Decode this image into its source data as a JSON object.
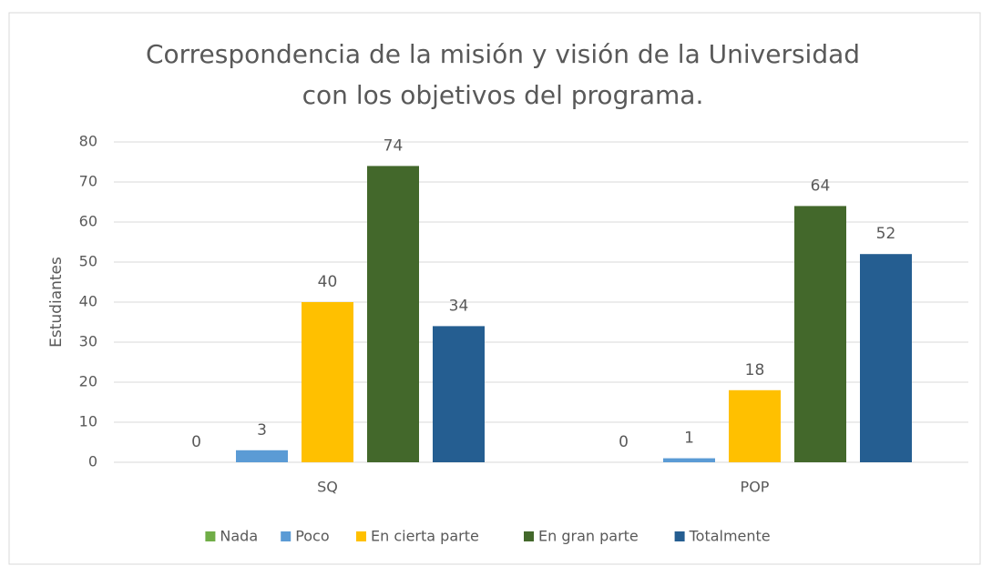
{
  "chart_data": {
    "type": "bar",
    "title_lines": [
      "Correspondencia  de la misión y visión de la Universidad",
      "con los objetivos del programa."
    ],
    "y_label": "Estudiantes",
    "categories": [
      "SQ",
      "POP"
    ],
    "series": [
      {
        "name": "Nada",
        "color": "#70ad47",
        "values": [
          0,
          0
        ]
      },
      {
        "name": "Poco",
        "color": "#5b9bd5",
        "values": [
          3,
          1
        ]
      },
      {
        "name": "En cierta parte",
        "color": "#ffc000",
        "values": [
          40,
          18
        ]
      },
      {
        "name": "En gran parte",
        "color": "#43682b",
        "values": [
          74,
          64
        ]
      },
      {
        "name": "Totalmente",
        "color": "#255e91",
        "values": [
          34,
          52
        ]
      }
    ],
    "ylim": [
      0,
      80
    ],
    "yticks": [
      0,
      10,
      20,
      30,
      40,
      50,
      60,
      70,
      80
    ],
    "grid": true,
    "legend": "bottom"
  }
}
